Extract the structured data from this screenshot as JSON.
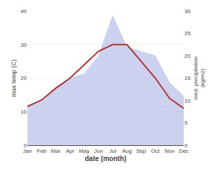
{
  "chart_data": {
    "type": "line",
    "xlabel": "date (month)",
    "ylabel": "max temp (C)",
    "y2label": "med. precipitation\n(kg/m2)",
    "categories": [
      "Jan",
      "Feb",
      "Mar",
      "Apr",
      "May",
      "Jun",
      "Jul",
      "Aug",
      "Sep",
      "Oct",
      "Nov",
      "Dec"
    ],
    "series": [
      {
        "type": "area",
        "color": "#b0b8e8",
        "axis": "y2",
        "values": [
          9.0,
          10.0,
          13.0,
          15.0,
          16.0,
          20.0,
          29.0,
          22.0,
          21.0,
          20.0,
          14.0,
          11.0
        ]
      },
      {
        "type": "line",
        "color": "#b03030",
        "values": [
          11.5,
          13.5,
          17.0,
          20.0,
          24.0,
          28.0,
          30.0,
          30.0,
          25.0,
          20.0,
          14.0,
          11.0
        ]
      }
    ],
    "ylim": [
      0,
      40
    ],
    "yticks": [
      0,
      10,
      20,
      30,
      40
    ],
    "y2lim": [
      0,
      30
    ],
    "y2ticks": [
      0,
      5,
      10,
      15,
      20,
      25,
      30
    ],
    "grid": true
  }
}
